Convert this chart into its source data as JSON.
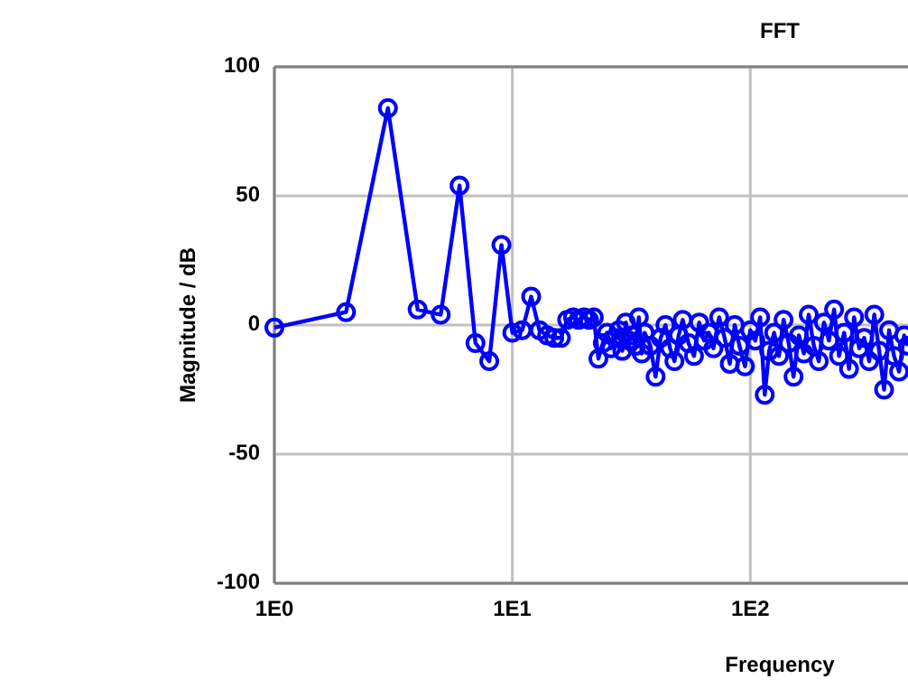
{
  "chart_data": {
    "type": "line",
    "title": "FFT",
    "xlabel": "Frequency",
    "ylabel": "Magnitude / dB",
    "log": "x",
    "grid": true,
    "marker": "circle",
    "line_style": "solid",
    "xlim": [
      1,
      460
    ],
    "xticks": [
      {
        "value": 1,
        "label": "1E0"
      },
      {
        "value": 10,
        "label": "1E1"
      },
      {
        "value": 100,
        "label": "1E2"
      }
    ],
    "ylim": [
      -100,
      100
    ],
    "yticks": [
      -100,
      -50,
      0,
      50,
      100
    ],
    "series": [
      {
        "color": "#0000ff",
        "x": [
          1,
          2,
          3,
          4,
          5,
          6,
          7,
          8,
          9,
          10,
          11,
          12,
          13,
          14,
          15,
          16,
          17,
          18,
          19,
          20,
          21,
          22,
          23,
          24,
          25,
          26,
          27,
          28,
          29,
          30,
          31,
          32,
          33,
          34,
          35,
          36,
          38,
          40,
          42,
          44,
          46,
          48,
          50,
          52,
          55,
          58,
          61,
          64,
          67,
          70,
          74,
          78,
          82,
          86,
          90,
          95,
          100,
          105,
          110,
          115,
          120,
          126,
          132,
          138,
          145,
          152,
          160,
          168,
          176,
          185,
          194,
          204,
          214,
          225,
          236,
          248,
          260,
          273,
          287,
          301,
          316,
          332,
          348,
          365,
          383,
          402,
          422,
          443,
          460
        ],
        "values": [
          -1,
          5,
          84,
          6,
          4,
          54,
          -7,
          -14,
          31,
          -3,
          -2,
          11,
          -2,
          -4,
          -5,
          -5,
          2,
          3,
          2,
          3,
          2,
          3,
          -13,
          -7,
          -3,
          -9,
          -5,
          -2,
          -10,
          1,
          -6,
          -4,
          -8,
          3,
          -11,
          -3,
          -8,
          -20,
          -5,
          0,
          -9,
          -14,
          -4,
          2,
          -7,
          -12,
          1,
          -6,
          -3,
          -9,
          3,
          -5,
          -15,
          0,
          -8,
          -16,
          -2,
          -6,
          3,
          -27,
          -10,
          -3,
          -12,
          2,
          -7,
          -20,
          -4,
          -11,
          4,
          -8,
          -14,
          1,
          -6,
          6,
          -12,
          -3,
          -17,
          3,
          -9,
          -5,
          -14,
          4,
          -10,
          -25,
          -2,
          -12,
          -18,
          -4,
          -8
        ]
      }
    ]
  }
}
